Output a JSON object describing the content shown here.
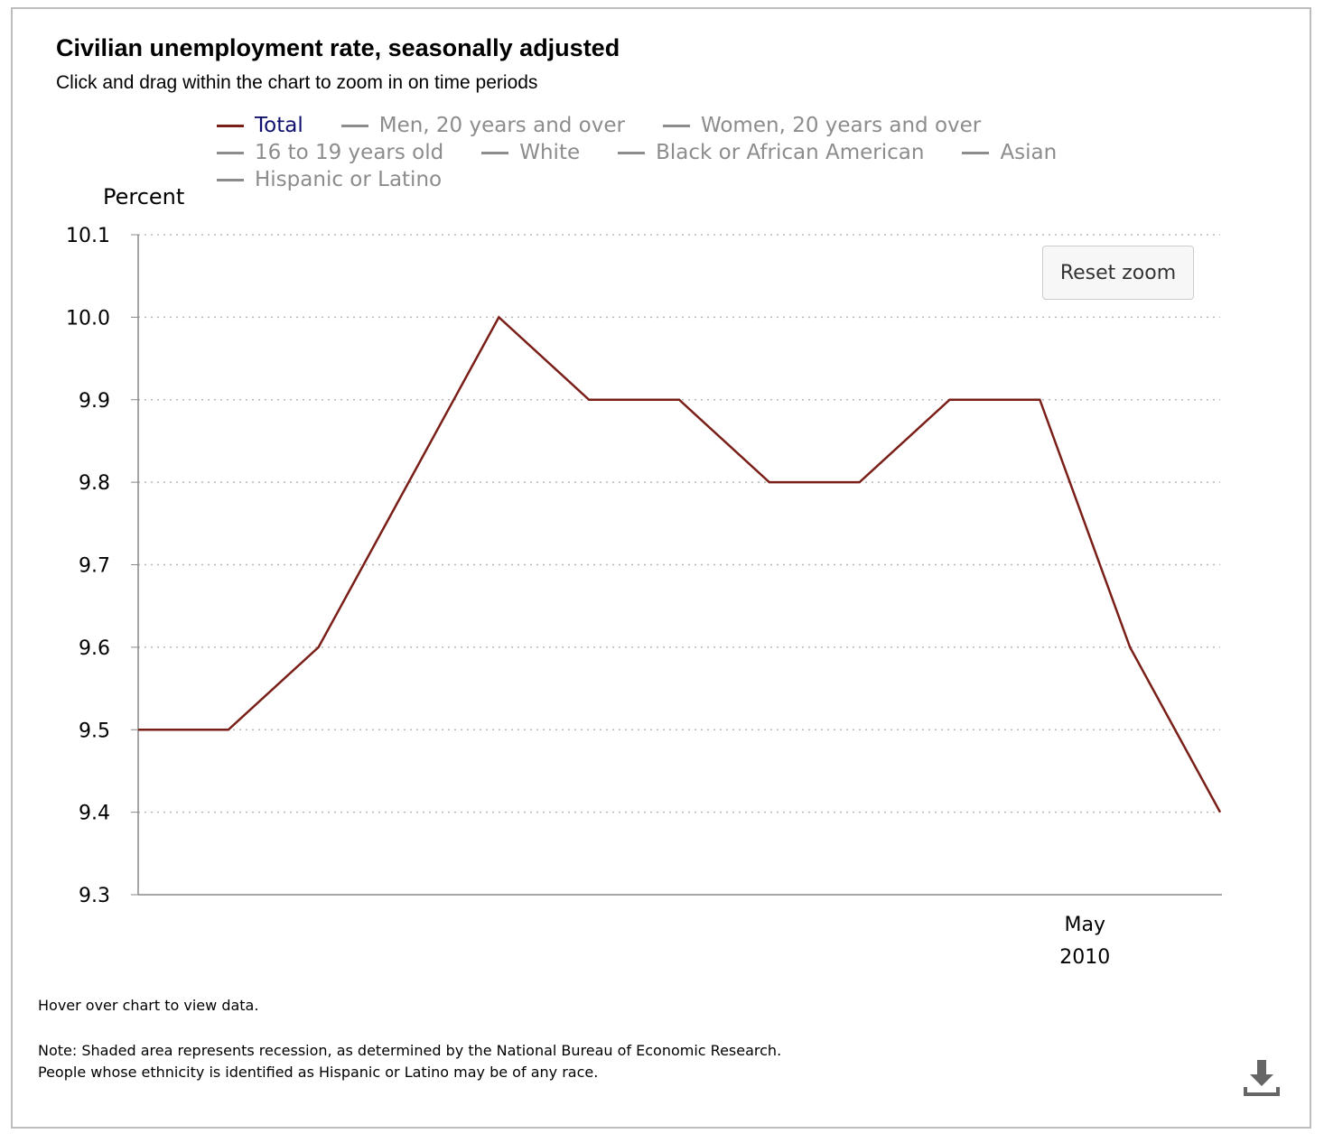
{
  "header": {
    "title": "Civilian unemployment rate, seasonally adjusted",
    "subtitle": "Click and drag within the chart to zoom in on time periods"
  },
  "legend": {
    "rows": [
      [
        "Total",
        "Men, 20 years and over",
        "Women, 20 years and over"
      ],
      [
        "16 to 19 years old",
        "White",
        "Black or African American",
        "Asian"
      ],
      [
        "Hispanic or Latino"
      ]
    ],
    "active": "Total"
  },
  "controls": {
    "reset_zoom_label": "Reset zoom"
  },
  "footer": {
    "hover_note": "Hover over chart to view data.",
    "note_line1": "Note: Shaded area represents recession, as determined by the National Bureau of Economic Research.",
    "note_line2": "People whose ethnicity is identified as Hispanic or Latino may be of any race."
  },
  "icons": {
    "download": "download-icon"
  },
  "colors": {
    "total_series": "#7a1e18",
    "inactive_series": "#8c8c8c",
    "active_legend_text": "#10106e"
  },
  "chart_data": {
    "type": "line",
    "ylabel": "Percent",
    "xlabel": "",
    "ylim": [
      9.3,
      10.1
    ],
    "yticks": [
      "10.1",
      "10.0",
      "9.9",
      "9.8",
      "9.7",
      "9.6",
      "9.5",
      "9.4",
      "9.3"
    ],
    "x_tick_labels": [
      {
        "month": "May",
        "year": "2010",
        "index": 10.5
      }
    ],
    "grid": true,
    "legend_position": "top",
    "x": [
      "2009-06",
      "2009-07",
      "2009-08",
      "2009-09",
      "2009-10",
      "2009-11",
      "2009-12",
      "2010-01",
      "2010-02",
      "2010-03",
      "2010-04",
      "2010-05",
      "2010-06"
    ],
    "series": [
      {
        "name": "Total",
        "values": [
          9.5,
          9.5,
          9.6,
          9.8,
          10.0,
          9.9,
          9.9,
          9.8,
          9.8,
          9.9,
          9.9,
          9.6,
          9.4
        ]
      }
    ]
  }
}
